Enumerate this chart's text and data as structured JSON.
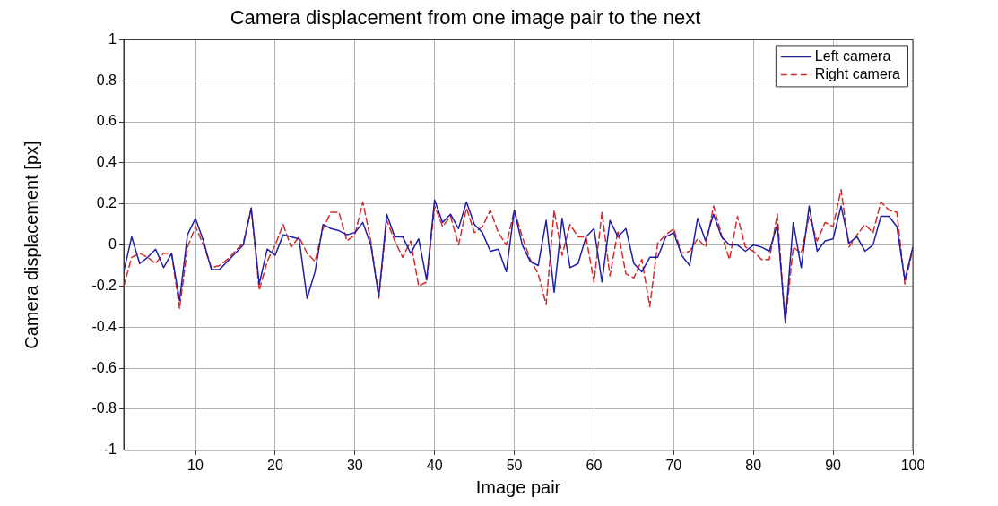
{
  "chart_data": {
    "type": "line",
    "title": "Camera displacement from one image pair to the next",
    "xlabel": "Image pair",
    "ylabel": "Camera displacement [px]",
    "x": [
      1,
      2,
      3,
      4,
      5,
      6,
      7,
      8,
      9,
      10,
      11,
      12,
      13,
      14,
      15,
      16,
      17,
      18,
      19,
      20,
      21,
      22,
      23,
      24,
      25,
      26,
      27,
      28,
      29,
      30,
      31,
      32,
      33,
      34,
      35,
      36,
      37,
      38,
      39,
      40,
      41,
      42,
      43,
      44,
      45,
      46,
      47,
      48,
      49,
      50,
      51,
      52,
      53,
      54,
      55,
      56,
      57,
      58,
      59,
      60,
      61,
      62,
      63,
      64,
      65,
      66,
      67,
      68,
      69,
      70,
      71,
      72,
      73,
      74,
      75,
      76,
      77,
      78,
      79,
      80,
      81,
      82,
      83,
      84,
      85,
      86,
      87,
      88,
      89,
      90,
      91,
      92,
      93,
      94,
      95,
      96,
      97,
      98,
      99,
      100
    ],
    "series": [
      {
        "name": "Left camera",
        "color": "#1f1fa8",
        "line_style": "solid",
        "values": [
          -0.13,
          0.04,
          -0.09,
          -0.06,
          -0.02,
          -0.11,
          -0.04,
          -0.27,
          0.05,
          0.13,
          0.02,
          -0.12,
          -0.12,
          -0.08,
          -0.04,
          0.0,
          0.18,
          -0.19,
          -0.02,
          -0.05,
          0.05,
          0.04,
          0.03,
          -0.26,
          -0.13,
          0.1,
          0.08,
          0.07,
          0.05,
          0.06,
          0.11,
          0.0,
          -0.25,
          0.15,
          0.04,
          0.04,
          -0.04,
          0.03,
          -0.17,
          0.22,
          0.11,
          0.15,
          0.08,
          0.21,
          0.1,
          0.06,
          -0.03,
          -0.02,
          -0.13,
          0.17,
          0.0,
          -0.08,
          -0.1,
          0.12,
          -0.23,
          0.13,
          -0.11,
          -0.09,
          0.04,
          0.08,
          -0.18,
          0.12,
          0.04,
          0.08,
          -0.09,
          -0.13,
          -0.06,
          -0.06,
          0.04,
          0.06,
          -0.05,
          -0.1,
          0.13,
          0.02,
          0.15,
          0.04,
          0.0,
          0.0,
          -0.03,
          0.0,
          -0.01,
          -0.03,
          0.1,
          -0.38,
          0.11,
          -0.11,
          0.19,
          -0.03,
          0.02,
          0.03,
          0.19,
          0.01,
          0.04,
          -0.03,
          0.0,
          0.14,
          0.14,
          0.09,
          -0.17,
          -0.01
        ]
      },
      {
        "name": "Right camera",
        "color": "#d42a2a",
        "line_style": "dashed",
        "values": [
          -0.2,
          -0.06,
          -0.04,
          -0.06,
          -0.09,
          -0.04,
          -0.04,
          -0.31,
          -0.01,
          0.09,
          0.0,
          -0.11,
          -0.1,
          -0.07,
          -0.03,
          0.01,
          0.18,
          -0.22,
          -0.08,
          0.0,
          0.1,
          -0.01,
          0.04,
          -0.04,
          -0.08,
          0.08,
          0.16,
          0.16,
          0.02,
          0.05,
          0.21,
          0.02,
          -0.26,
          0.12,
          0.02,
          -0.06,
          0.02,
          -0.2,
          -0.18,
          0.19,
          0.09,
          0.14,
          0.0,
          0.18,
          0.06,
          0.09,
          0.17,
          0.06,
          0.0,
          0.17,
          0.04,
          -0.07,
          -0.14,
          -0.29,
          0.17,
          -0.05,
          0.1,
          0.04,
          0.04,
          -0.18,
          0.16,
          -0.15,
          0.07,
          -0.14,
          -0.16,
          -0.07,
          -0.3,
          0.01,
          0.05,
          0.08,
          -0.04,
          -0.03,
          0.03,
          -0.01,
          0.19,
          0.05,
          -0.07,
          0.14,
          -0.01,
          -0.03,
          -0.07,
          -0.07,
          0.15,
          -0.38,
          -0.01,
          -0.04,
          0.14,
          0.02,
          0.11,
          0.09,
          0.27,
          -0.01,
          0.05,
          0.1,
          0.06,
          0.21,
          0.17,
          0.16,
          -0.19,
          -0.02
        ]
      }
    ],
    "xlim": [
      1,
      100
    ],
    "xticks": [
      10,
      20,
      30,
      40,
      50,
      60,
      70,
      80,
      90,
      100
    ],
    "ylim": [
      -1,
      1
    ],
    "yticks": [
      -1,
      -0.8,
      -0.6,
      -0.4,
      -0.2,
      0,
      0.2,
      0.4,
      0.6,
      0.8,
      1
    ],
    "grid": true,
    "legend": "top right",
    "marker": "none"
  }
}
